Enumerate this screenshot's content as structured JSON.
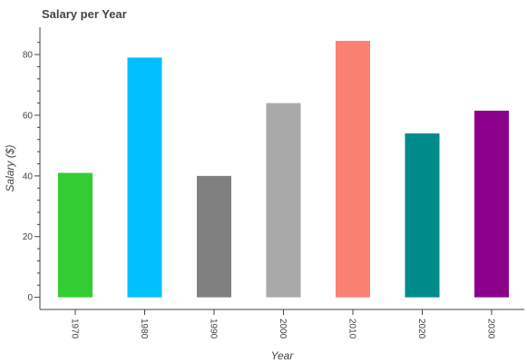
{
  "chart_data": {
    "type": "bar",
    "title": "Salary per Year",
    "xlabel": "Year",
    "ylabel": "Salary ($)",
    "categories": [
      "1970",
      "1980",
      "1990",
      "2000",
      "2010",
      "2020",
      "2030"
    ],
    "values": [
      41,
      79,
      40,
      64,
      84.5,
      54,
      61.5
    ],
    "colors": [
      "#32CD32",
      "#00BFFF",
      "#808080",
      "#A9A9A9",
      "#FA8072",
      "#008B8B",
      "#8B008B"
    ],
    "ylim": [
      -4,
      89
    ],
    "yticks": [
      0,
      20,
      40,
      60,
      80
    ],
    "grid": false,
    "legend": "none"
  }
}
